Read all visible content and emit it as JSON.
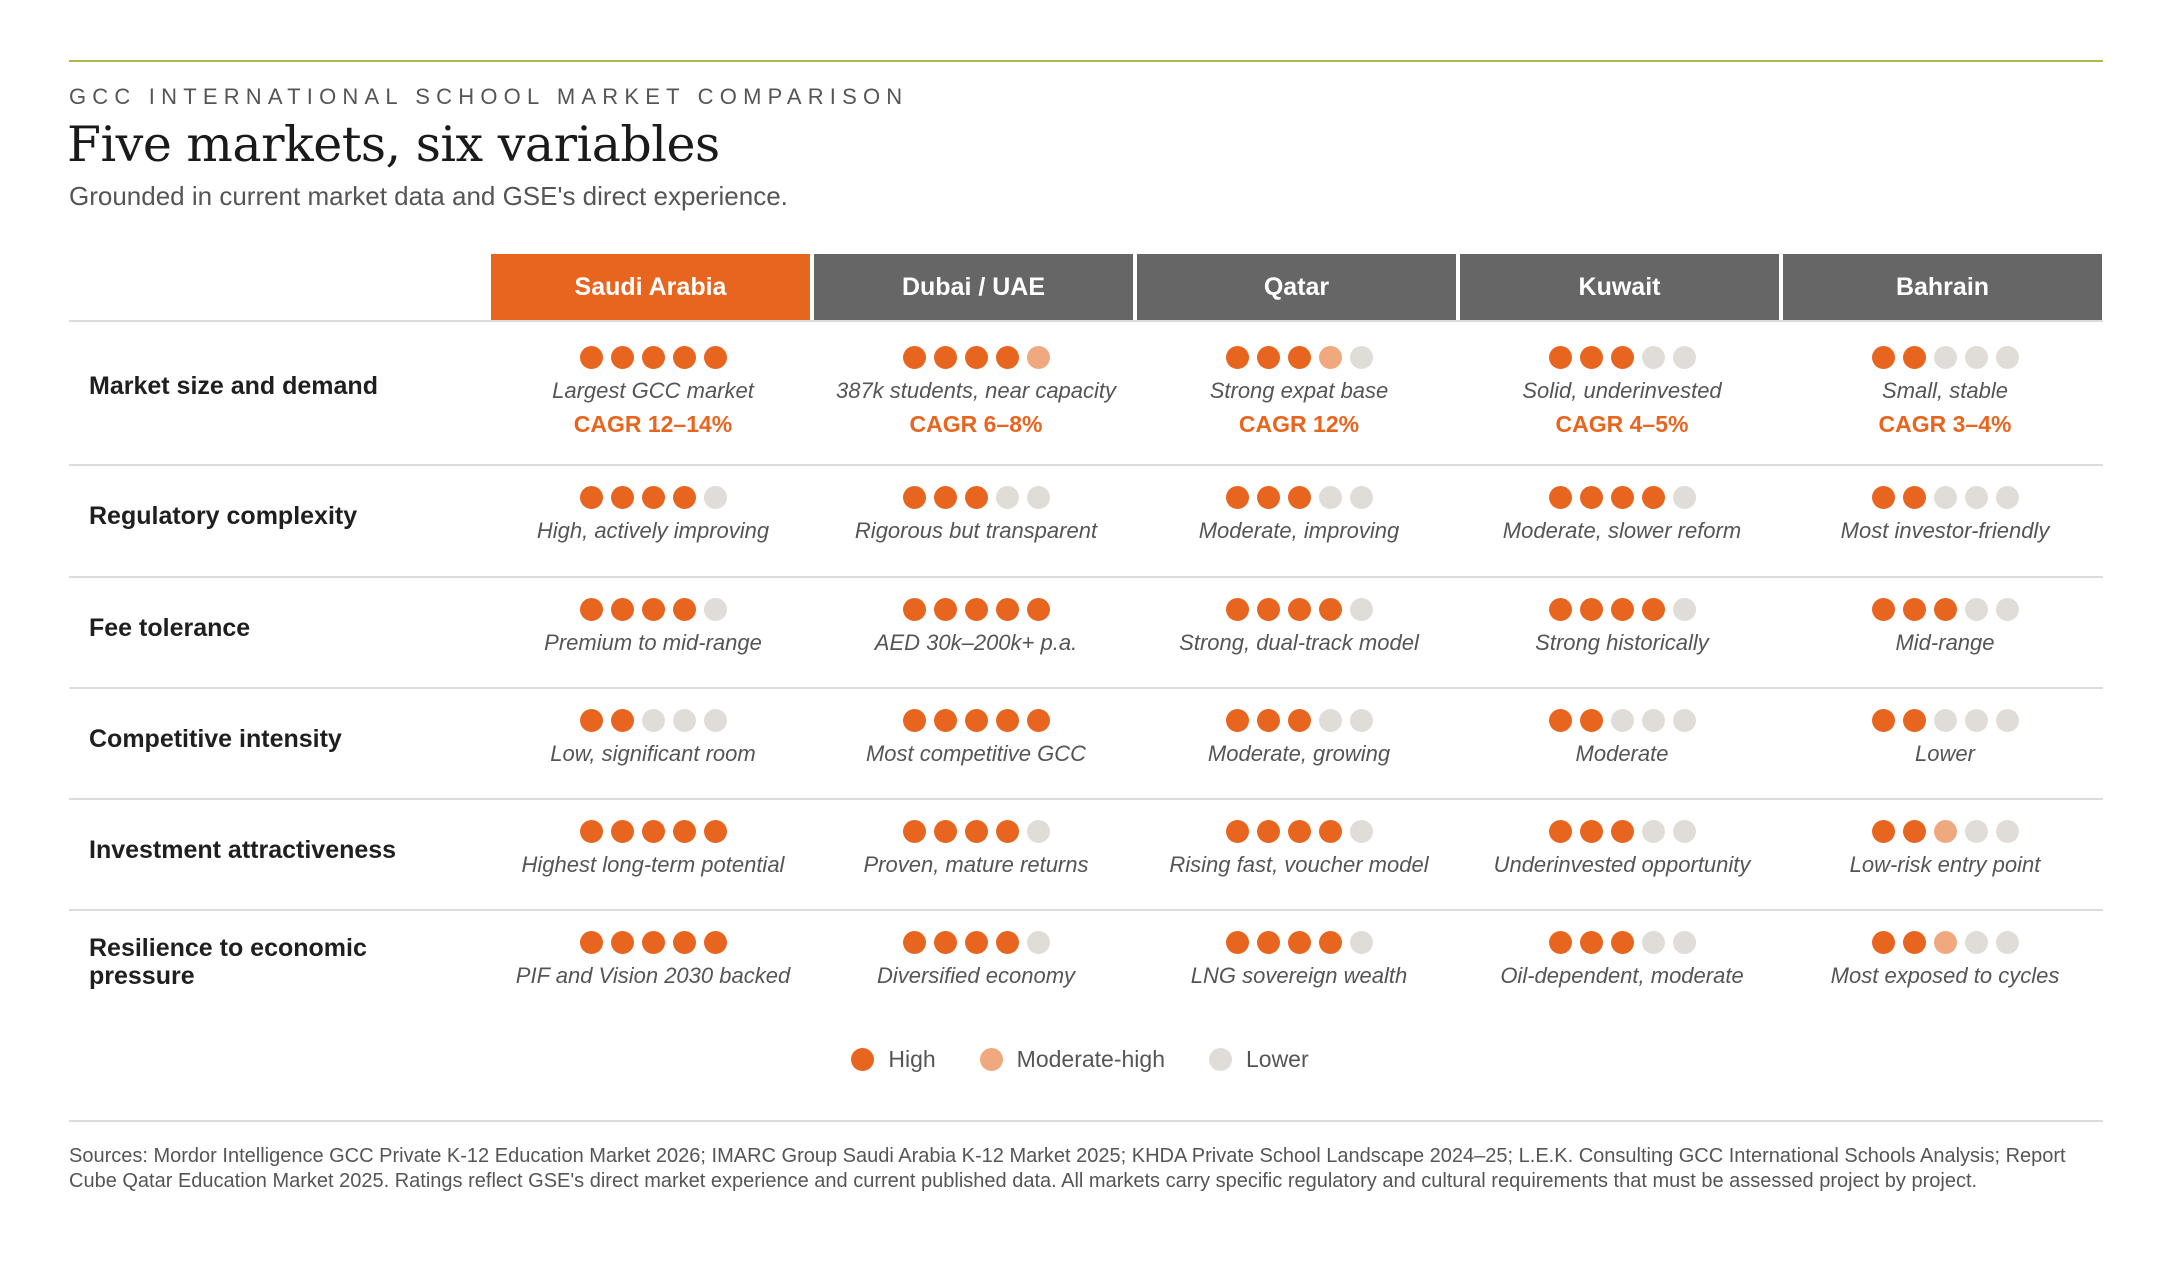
{
  "header": {
    "eyebrow": "GCC INTERNATIONAL SCHOOL MARKET COMPARISON",
    "title": "Five markets, six variables",
    "subtitle": "Grounded in current market data and GSE's direct experience."
  },
  "columns": [
    {
      "label": "Saudi Arabia",
      "active": true
    },
    {
      "label": "Dubai / UAE",
      "active": false
    },
    {
      "label": "Qatar",
      "active": false
    },
    {
      "label": "Kuwait",
      "active": false
    },
    {
      "label": "Bahrain",
      "active": false
    }
  ],
  "rows": [
    {
      "label": "Market size and demand",
      "cells": [
        {
          "dots": [
            "high",
            "high",
            "high",
            "high",
            "high"
          ],
          "note": "Largest GCC market",
          "cagr": "CAGR 12–14%"
        },
        {
          "dots": [
            "high",
            "high",
            "high",
            "high",
            "mod"
          ],
          "note": "387k students, near capacity",
          "cagr": "CAGR 6–8%"
        },
        {
          "dots": [
            "high",
            "high",
            "high",
            "mod",
            "low"
          ],
          "note": "Strong expat base",
          "cagr": "CAGR 12%"
        },
        {
          "dots": [
            "high",
            "high",
            "high",
            "low",
            "low"
          ],
          "note": "Solid, underinvested",
          "cagr": "CAGR 4–5%"
        },
        {
          "dots": [
            "high",
            "high",
            "low",
            "low",
            "low"
          ],
          "note": "Small, stable",
          "cagr": "CAGR 3–4%"
        }
      ]
    },
    {
      "label": "Regulatory complexity",
      "cells": [
        {
          "dots": [
            "high",
            "high",
            "high",
            "high",
            "low"
          ],
          "note": "High, actively improving"
        },
        {
          "dots": [
            "high",
            "high",
            "high",
            "low",
            "low"
          ],
          "note": "Rigorous but transparent"
        },
        {
          "dots": [
            "high",
            "high",
            "high",
            "low",
            "low"
          ],
          "note": "Moderate, improving"
        },
        {
          "dots": [
            "high",
            "high",
            "high",
            "high",
            "low"
          ],
          "note": "Moderate, slower reform"
        },
        {
          "dots": [
            "high",
            "high",
            "low",
            "low",
            "low"
          ],
          "note": "Most investor-friendly"
        }
      ]
    },
    {
      "label": "Fee tolerance",
      "cells": [
        {
          "dots": [
            "high",
            "high",
            "high",
            "high",
            "low"
          ],
          "note": "Premium to mid-range"
        },
        {
          "dots": [
            "high",
            "high",
            "high",
            "high",
            "high"
          ],
          "note": "AED 30k–200k+ p.a."
        },
        {
          "dots": [
            "high",
            "high",
            "high",
            "high",
            "low"
          ],
          "note": "Strong, dual-track model"
        },
        {
          "dots": [
            "high",
            "high",
            "high",
            "high",
            "low"
          ],
          "note": "Strong historically"
        },
        {
          "dots": [
            "high",
            "high",
            "high",
            "low",
            "low"
          ],
          "note": "Mid-range"
        }
      ]
    },
    {
      "label": "Competitive intensity",
      "cells": [
        {
          "dots": [
            "high",
            "high",
            "low",
            "low",
            "low"
          ],
          "note": "Low, significant room"
        },
        {
          "dots": [
            "high",
            "high",
            "high",
            "high",
            "high"
          ],
          "note": "Most competitive GCC"
        },
        {
          "dots": [
            "high",
            "high",
            "high",
            "low",
            "low"
          ],
          "note": "Moderate, growing"
        },
        {
          "dots": [
            "high",
            "high",
            "low",
            "low",
            "low"
          ],
          "note": "Moderate"
        },
        {
          "dots": [
            "high",
            "high",
            "low",
            "low",
            "low"
          ],
          "note": "Lower"
        }
      ]
    },
    {
      "label": "Investment attractiveness",
      "cells": [
        {
          "dots": [
            "high",
            "high",
            "high",
            "high",
            "high"
          ],
          "note": "Highest long-term potential"
        },
        {
          "dots": [
            "high",
            "high",
            "high",
            "high",
            "low"
          ],
          "note": "Proven, mature returns"
        },
        {
          "dots": [
            "high",
            "high",
            "high",
            "high",
            "low"
          ],
          "note": "Rising fast, voucher model"
        },
        {
          "dots": [
            "high",
            "high",
            "high",
            "low",
            "low"
          ],
          "note": "Underinvested opportunity"
        },
        {
          "dots": [
            "high",
            "high",
            "mod",
            "low",
            "low"
          ],
          "note": "Low-risk entry point"
        }
      ]
    },
    {
      "label": "Resilience to economic pressure",
      "cells": [
        {
          "dots": [
            "high",
            "high",
            "high",
            "high",
            "high"
          ],
          "note": "PIF and Vision 2030 backed"
        },
        {
          "dots": [
            "high",
            "high",
            "high",
            "high",
            "low"
          ],
          "note": "Diversified economy"
        },
        {
          "dots": [
            "high",
            "high",
            "high",
            "high",
            "low"
          ],
          "note": "LNG sovereign wealth"
        },
        {
          "dots": [
            "high",
            "high",
            "high",
            "low",
            "low"
          ],
          "note": "Oil-dependent, moderate"
        },
        {
          "dots": [
            "high",
            "high",
            "mod",
            "low",
            "low"
          ],
          "note": "Most exposed to cycles"
        }
      ]
    }
  ],
  "legend": [
    {
      "key": "high",
      "label": "High",
      "color": "#e8651f"
    },
    {
      "key": "mod",
      "label": "Moderate-high",
      "color": "#f0a97e"
    },
    {
      "key": "low",
      "label": "Lower",
      "color": "#e0ddd8"
    }
  ],
  "sources": "Sources: Mordor Intelligence GCC Private K-12 Education Market 2026; IMARC Group Saudi Arabia K-12 Market 2025; KHDA Private School Landscape 2024–25; L.E.K. Consulting GCC International Schools Analysis; Report Cube Qatar Education Market 2025. Ratings reflect GSE's direct market experience and current published data. All markets carry specific regulatory and cultural requirements that must be assessed project by project."
}
